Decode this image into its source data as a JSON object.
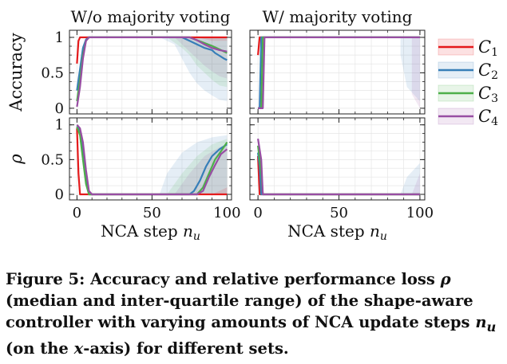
{
  "figure": {
    "caption_prefix": "Figure 5: Accuracy and relative performance loss ",
    "caption_rho": "ρ",
    "caption_mid": " (median and inter-quartile range) of the shape-aware controller with varying amounts of NCA update steps ",
    "caption_nu": "n",
    "caption_nu_sub": "u",
    "caption_mid2": " (on the ",
    "caption_x": "x",
    "caption_end": "-axis) for different sets."
  },
  "colors": {
    "C1": "#e41a1c",
    "C2": "#377eb8",
    "C3": "#4daf4a",
    "C4": "#984ea3"
  },
  "chart_data": [
    {
      "type": "line",
      "panel": "top-left",
      "title": "W/o majority voting",
      "ylabel": "Accuracy",
      "xlabel": "",
      "xlim": [
        -5,
        103
      ],
      "ylim": [
        -0.08,
        1.1
      ],
      "xticks": [
        0,
        50,
        100
      ],
      "yticks": [
        0,
        0.5,
        1
      ],
      "ytick_labels": [
        "0",
        "0.5",
        "1"
      ],
      "grid": true,
      "series": [
        {
          "key": "C1",
          "x": [
            0,
            1,
            2,
            100
          ],
          "y": [
            0.63,
            0.95,
            1.0,
            1.0
          ]
        },
        {
          "key": "C2",
          "x": [
            0,
            2,
            4,
            6,
            8,
            10,
            70,
            75,
            80,
            85,
            90,
            92,
            95,
            98,
            100
          ],
          "y": [
            0.25,
            0.55,
            0.85,
            0.97,
            1.0,
            1.0,
            1.0,
            0.95,
            0.9,
            0.85,
            0.82,
            0.78,
            0.74,
            0.7,
            0.68
          ]
        },
        {
          "key": "C3",
          "x": [
            0,
            2,
            4,
            6,
            8,
            10,
            75,
            80,
            85,
            90,
            95,
            100
          ],
          "y": [
            0.1,
            0.4,
            0.75,
            0.95,
            1.0,
            1.0,
            1.0,
            0.96,
            0.92,
            0.88,
            0.83,
            0.78
          ]
        },
        {
          "key": "C4",
          "x": [
            0,
            2,
            4,
            6,
            8,
            10,
            75,
            80,
            85,
            90,
            95,
            100
          ],
          "y": [
            0.02,
            0.3,
            0.7,
            0.95,
            1.0,
            1.0,
            1.0,
            0.96,
            0.9,
            0.85,
            0.82,
            0.8
          ]
        }
      ],
      "bands": [
        {
          "key": "C2",
          "x": [
            55,
            65,
            70,
            75,
            80,
            85,
            90,
            95,
            100
          ],
          "low": [
            1.0,
            0.9,
            0.7,
            0.5,
            0.35,
            0.25,
            0.18,
            0.12,
            0.1
          ],
          "high": [
            1.0,
            1.0,
            1.0,
            1.0,
            1.0,
            1.0,
            1.0,
            1.0,
            1.0
          ]
        },
        {
          "key": "C3",
          "x": [
            60,
            70,
            75,
            80,
            85,
            90,
            95,
            100
          ],
          "low": [
            1.0,
            0.85,
            0.75,
            0.6,
            0.5,
            0.4,
            0.32,
            0.3
          ],
          "high": [
            1.0,
            1.0,
            1.0,
            1.0,
            1.0,
            1.0,
            1.0,
            1.0
          ]
        },
        {
          "key": "C4",
          "x": [
            65,
            70,
            75,
            80,
            85,
            90,
            95,
            100
          ],
          "low": [
            1.0,
            0.9,
            0.8,
            0.7,
            0.6,
            0.52,
            0.45,
            0.42
          ],
          "high": [
            1.0,
            1.0,
            1.0,
            1.0,
            1.0,
            1.0,
            1.0,
            1.0
          ]
        },
        {
          "key": "C1",
          "x": [
            80,
            90,
            100
          ],
          "low": [
            1.0,
            0.95,
            0.95
          ],
          "high": [
            1.0,
            1.0,
            1.0
          ]
        }
      ]
    },
    {
      "type": "line",
      "panel": "top-right",
      "title": "W/ majority voting",
      "ylabel": "",
      "xlabel": "",
      "xlim": [
        -5,
        103
      ],
      "ylim": [
        -0.08,
        1.1
      ],
      "xticks": [
        0,
        50,
        100
      ],
      "yticks": [
        0,
        0.5,
        1
      ],
      "grid": true,
      "series": [
        {
          "key": "C1",
          "x": [
            0,
            1,
            100
          ],
          "y": [
            0.75,
            1.0,
            1.0
          ]
        },
        {
          "key": "C2",
          "x": [
            0,
            1,
            2,
            3,
            100
          ],
          "y": [
            0.0,
            0.0,
            1.0,
            1.0,
            1.0
          ]
        },
        {
          "key": "C3",
          "x": [
            0,
            2,
            3,
            4,
            100
          ],
          "y": [
            0.0,
            0.0,
            1.0,
            1.0,
            1.0
          ]
        },
        {
          "key": "C4",
          "x": [
            0,
            3,
            4,
            5,
            100
          ],
          "y": [
            0.0,
            0.0,
            1.0,
            1.0,
            1.0
          ]
        }
      ],
      "bands": [
        {
          "key": "C2",
          "x": [
            88,
            92,
            96,
            100
          ],
          "low": [
            0.75,
            0.3,
            0.2,
            0.1
          ],
          "high": [
            1.0,
            1.0,
            1.0,
            1.0
          ]
        },
        {
          "key": "C4",
          "x": [
            95,
            100
          ],
          "low": [
            0.2,
            0.0
          ],
          "high": [
            1.0,
            1.0
          ]
        }
      ]
    },
    {
      "type": "line",
      "panel": "bottom-left",
      "title": "",
      "ylabel": "ρ",
      "xlabel": "NCA step n_u",
      "xlim": [
        -5,
        103
      ],
      "ylim": [
        -0.08,
        1.1
      ],
      "xticks": [
        0,
        50,
        100
      ],
      "xtick_labels": [
        "0",
        "50",
        "100"
      ],
      "yticks": [
        0,
        0.5,
        1
      ],
      "ytick_labels": [
        "0",
        "0.5",
        "1"
      ],
      "grid": true,
      "series": [
        {
          "key": "C1",
          "x": [
            0,
            1,
            2,
            100
          ],
          "y": [
            0.95,
            0.3,
            0.0,
            0.0
          ]
        },
        {
          "key": "C2",
          "x": [
            0,
            2,
            4,
            6,
            8,
            10,
            75,
            78,
            82,
            86,
            90,
            95,
            100
          ],
          "y": [
            0.98,
            0.9,
            0.6,
            0.25,
            0.0,
            0.0,
            0.0,
            0.05,
            0.2,
            0.4,
            0.55,
            0.65,
            0.72
          ]
        },
        {
          "key": "C3",
          "x": [
            0,
            2,
            4,
            6,
            8,
            10,
            80,
            84,
            88,
            92,
            96,
            100
          ],
          "y": [
            0.97,
            0.85,
            0.5,
            0.15,
            0.0,
            0.0,
            0.0,
            0.1,
            0.3,
            0.5,
            0.62,
            0.75
          ]
        },
        {
          "key": "C4",
          "x": [
            0,
            2,
            4,
            6,
            8,
            10,
            80,
            84,
            88,
            92,
            96,
            100
          ],
          "y": [
            1.0,
            0.95,
            0.75,
            0.35,
            0.05,
            0.0,
            0.0,
            0.05,
            0.25,
            0.42,
            0.58,
            0.65
          ]
        }
      ],
      "bands": [
        {
          "key": "C2",
          "x": [
            55,
            60,
            70,
            80,
            90,
            100
          ],
          "low": [
            0.0,
            0.0,
            0.0,
            0.0,
            0.0,
            0.0
          ],
          "high": [
            0.0,
            0.3,
            0.6,
            0.75,
            0.82,
            0.85
          ]
        },
        {
          "key": "C3",
          "x": [
            60,
            70,
            80,
            90,
            100
          ],
          "low": [
            0.0,
            0.0,
            0.0,
            0.0,
            0.0
          ],
          "high": [
            0.0,
            0.3,
            0.55,
            0.72,
            0.8
          ]
        },
        {
          "key": "C4",
          "x": [
            65,
            75,
            85,
            95,
            100
          ],
          "low": [
            0.0,
            0.0,
            0.0,
            0.0,
            0.0
          ],
          "high": [
            0.0,
            0.3,
            0.55,
            0.68,
            0.72
          ]
        },
        {
          "key": "C1",
          "x": [
            90,
            100
          ],
          "low": [
            0.0,
            0.0
          ],
          "high": [
            0.0,
            0.1
          ]
        }
      ]
    },
    {
      "type": "line",
      "panel": "bottom-right",
      "title": "",
      "ylabel": "",
      "xlabel": "NCA step n_u",
      "xlim": [
        -5,
        103
      ],
      "ylim": [
        -0.08,
        1.1
      ],
      "xticks": [
        0,
        50,
        100
      ],
      "xtick_labels": [
        "0",
        "50",
        "100"
      ],
      "yticks": [
        0,
        0.5,
        1
      ],
      "grid": true,
      "series": [
        {
          "key": "C1",
          "x": [
            0,
            1,
            100
          ],
          "y": [
            0.55,
            0.0,
            0.0
          ]
        },
        {
          "key": "C2",
          "x": [
            0,
            1,
            2,
            3,
            100
          ],
          "y": [
            0.6,
            0.4,
            0.0,
            0.0,
            0.0
          ]
        },
        {
          "key": "C3",
          "x": [
            0,
            2,
            3,
            100
          ],
          "y": [
            0.7,
            0.3,
            0.0,
            0.0
          ]
        },
        {
          "key": "C4",
          "x": [
            0,
            2,
            3,
            4,
            100
          ],
          "y": [
            0.8,
            0.5,
            0.0,
            0.0,
            0.0
          ]
        }
      ],
      "bands": [
        {
          "key": "C2",
          "x": [
            88,
            92,
            96,
            100
          ],
          "low": [
            0.0,
            0.0,
            0.0,
            0.0
          ],
          "high": [
            0.0,
            0.25,
            0.35,
            0.45
          ]
        },
        {
          "key": "C4",
          "x": [
            95,
            100
          ],
          "low": [
            0.0,
            0.0
          ],
          "high": [
            0.0,
            0.3
          ]
        }
      ]
    }
  ],
  "legend": {
    "placement": "right",
    "entries": [
      {
        "key": "C1",
        "label": "C",
        "sub": "1"
      },
      {
        "key": "C2",
        "label": "C",
        "sub": "2"
      },
      {
        "key": "C3",
        "label": "C",
        "sub": "3"
      },
      {
        "key": "C4",
        "label": "C",
        "sub": "4"
      }
    ]
  }
}
